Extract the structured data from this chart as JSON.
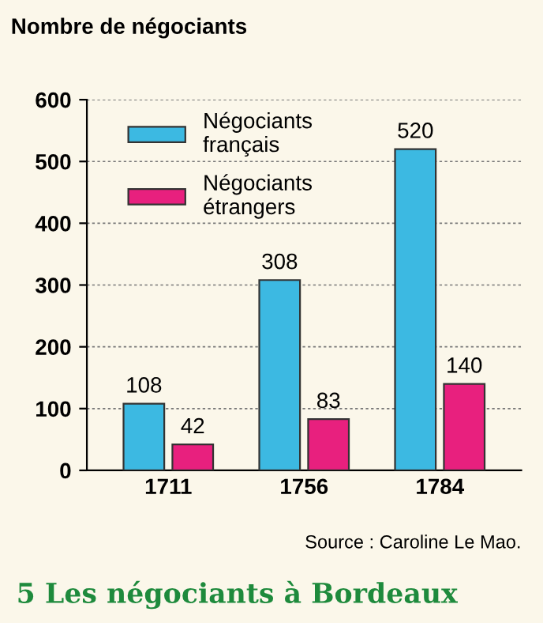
{
  "chart_data": {
    "type": "bar",
    "title": "5 Les négociants à Bordeaux",
    "ylabel": "Nombre de négociants",
    "categories": [
      "1711",
      "1756",
      "1784"
    ],
    "series": [
      {
        "name": "Négociants\nfrançais",
        "color": "#3cb9e2",
        "values": [
          108,
          308,
          520
        ]
      },
      {
        "name": "Négociants\nétrangers",
        "color": "#e8207e",
        "values": [
          42,
          83,
          140
        ]
      }
    ],
    "ylim": [
      0,
      600
    ],
    "yticks": [
      0,
      100,
      200,
      300,
      400,
      500,
      600
    ],
    "grid": "y",
    "legend": "top left",
    "data_labels": true,
    "annotations": [
      "Source : Caroline Le Mao."
    ]
  }
}
